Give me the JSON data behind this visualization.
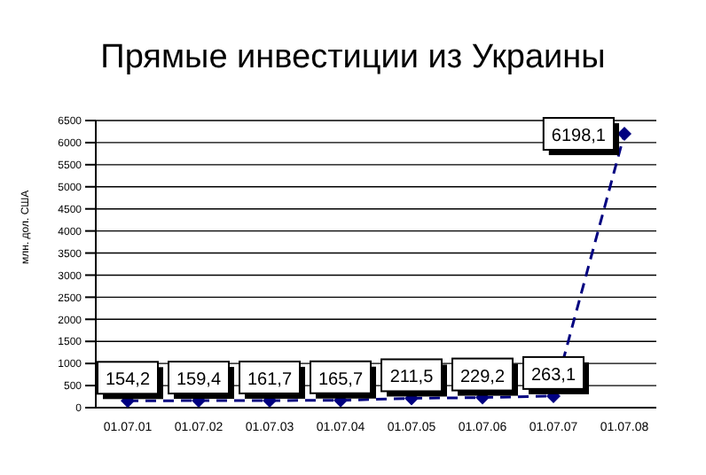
{
  "chart_data": {
    "type": "line",
    "title": "Прямые инвестиции из Украины",
    "ylabel": "млн. дол. США",
    "categories": [
      "01.07.01",
      "01.07.02",
      "01.07.03",
      "01.07.04",
      "01.07.05",
      "01.07.06",
      "01.07.07",
      "01.07.08"
    ],
    "series": [
      {
        "color": "#000080",
        "values": [
          154.2,
          159.4,
          161.7,
          165.7,
          211.5,
          229.2,
          263.1,
          6198.1
        ],
        "value_labels": [
          "154,2",
          "159,4",
          "161,7",
          "165,7",
          "211,5",
          "229,2",
          "263,1",
          "6198,1"
        ]
      }
    ],
    "ylim": [
      0,
      6500
    ],
    "yticks": [
      0,
      500,
      1000,
      1500,
      2000,
      2500,
      3000,
      3500,
      4000,
      4500,
      5000,
      5500,
      6000,
      6500
    ],
    "grid": "y",
    "marker": "diamond",
    "line_style": "dashed"
  }
}
